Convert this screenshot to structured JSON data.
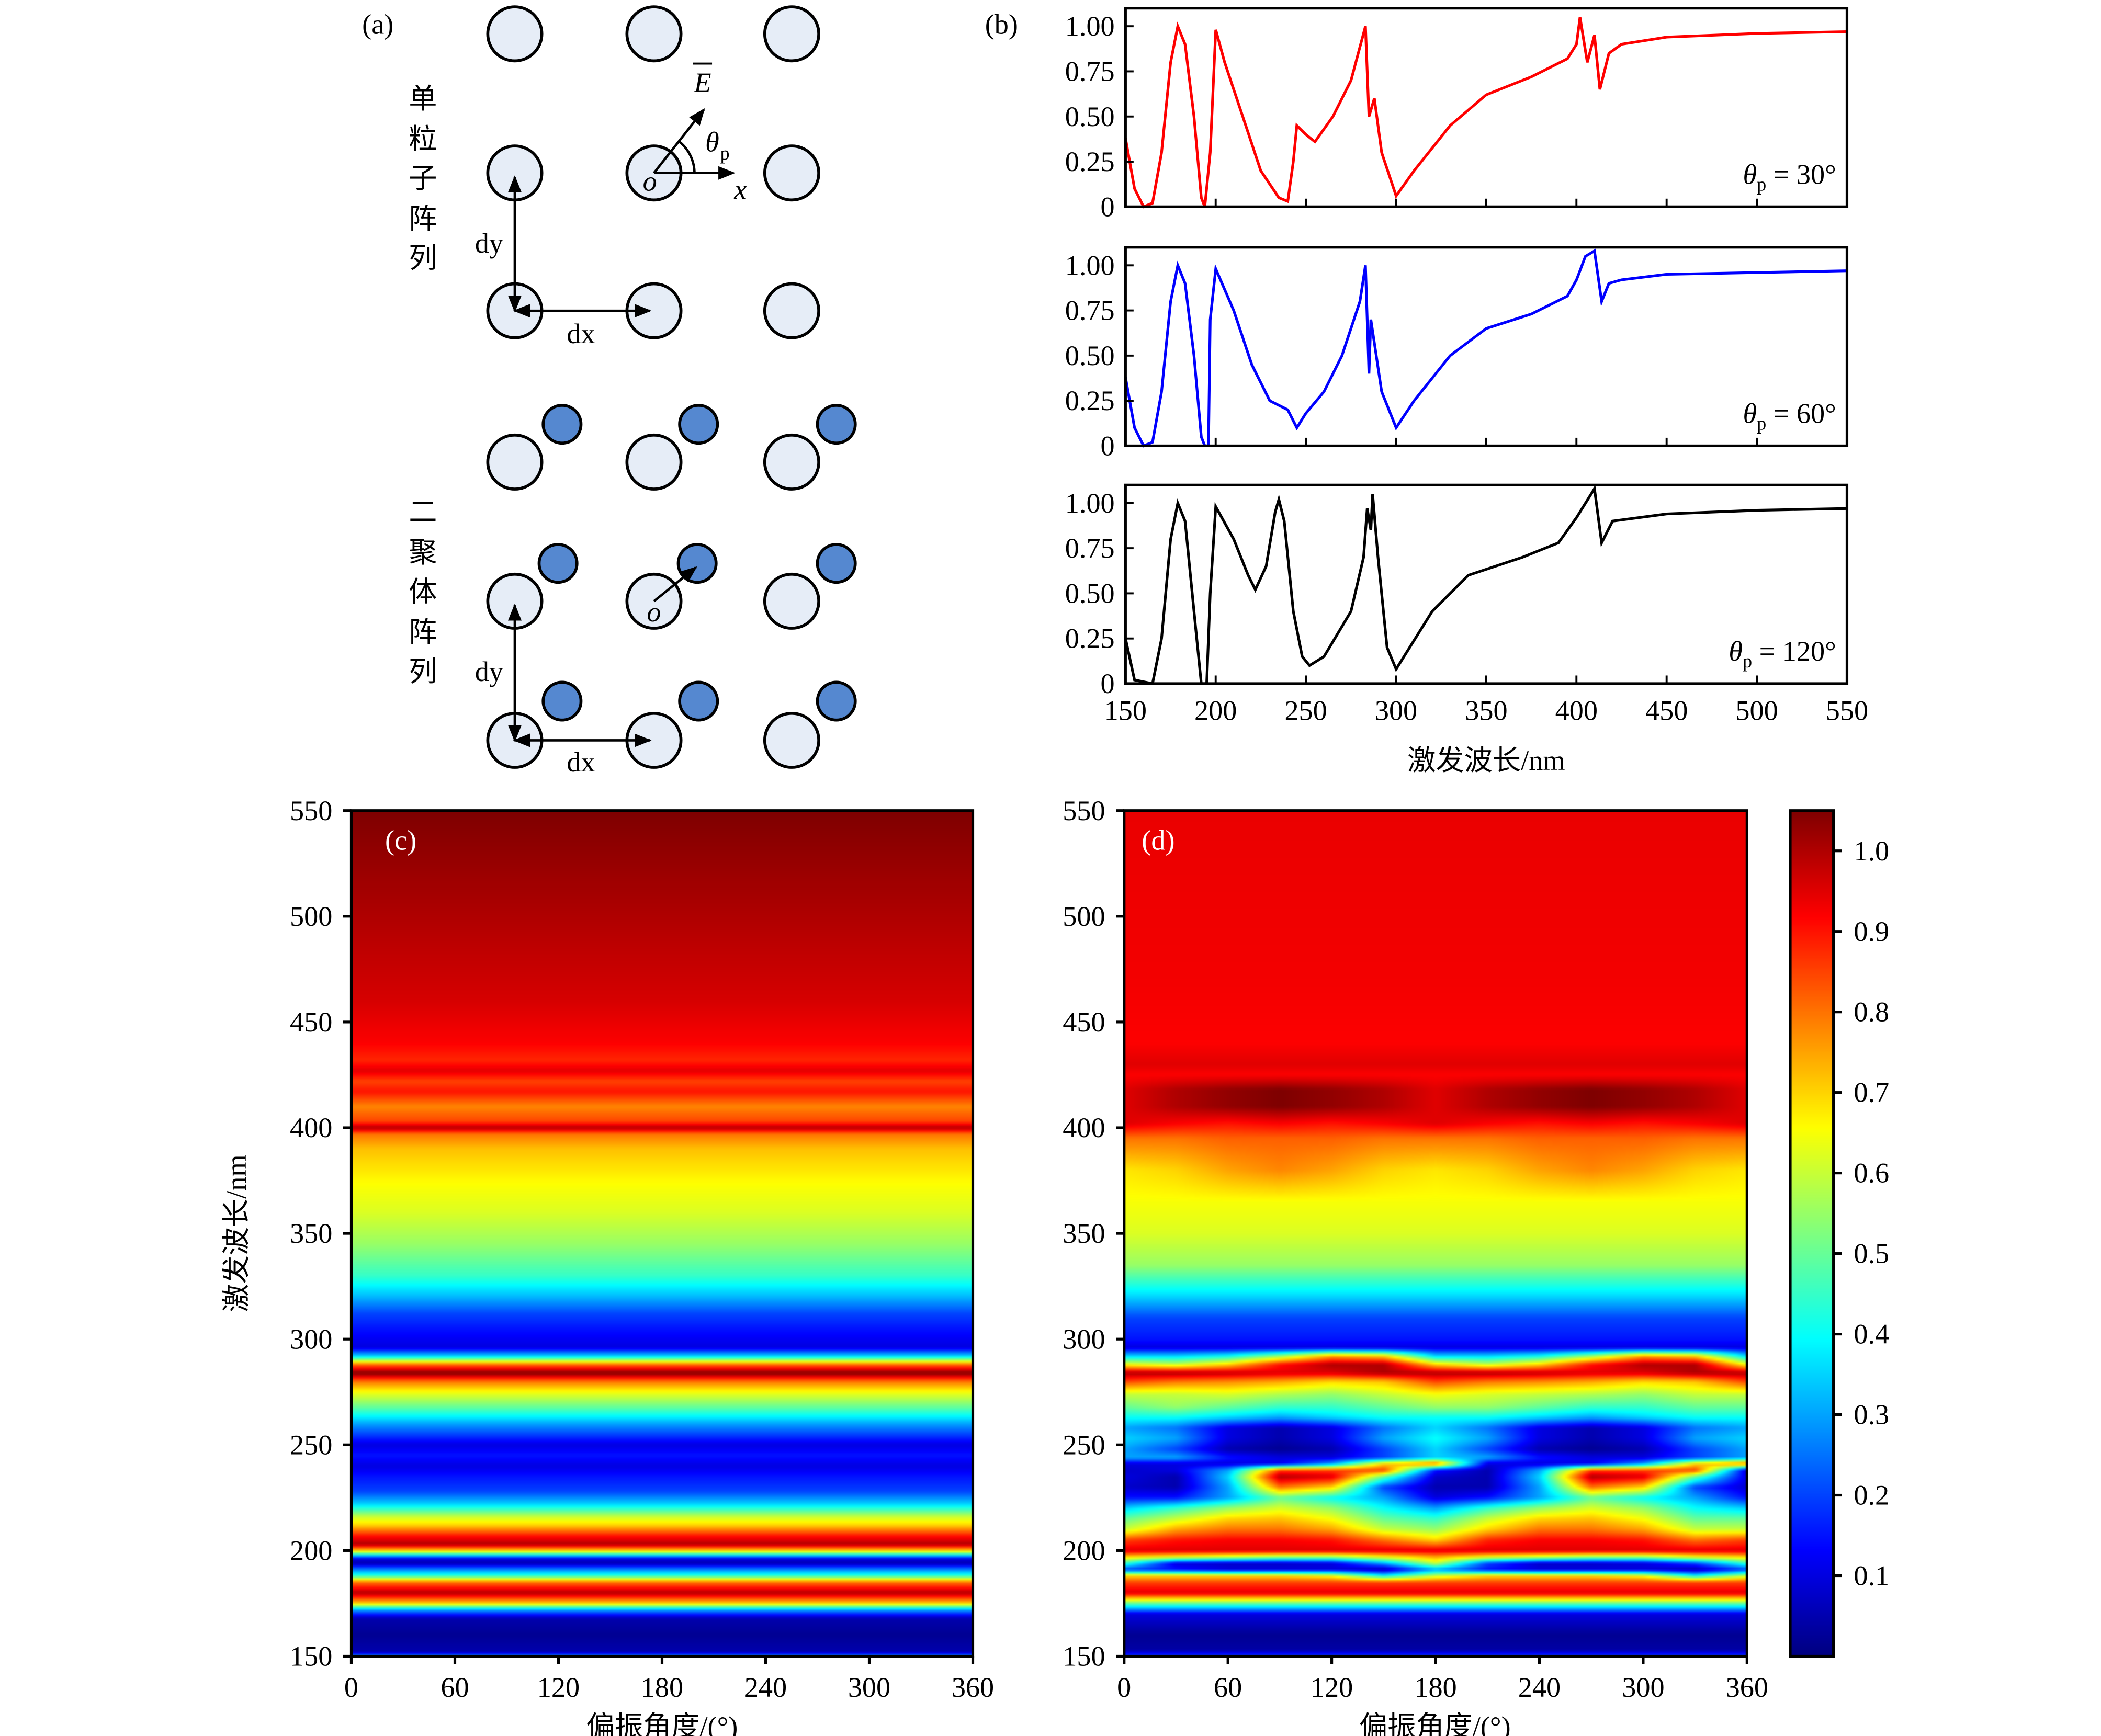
{
  "panel_a": {
    "label": "(a)",
    "group1_title": [
      "单",
      "粒",
      "子",
      "阵",
      "列"
    ],
    "group2_title": [
      "二",
      "聚",
      "体",
      "阵",
      "列"
    ],
    "dy_label": "dy",
    "dx_label": "dx",
    "e_label": "E",
    "theta_label": "θ",
    "theta_sub": "p",
    "x_axis_label": "x",
    "origin_label": "o",
    "colors": {
      "particle": "#e6edf7",
      "dimer_particle": "#5588d0"
    }
  },
  "chart_data": [
    {
      "id": "b",
      "type": "line",
      "panel_label": "(b)",
      "xlabel": "激发波长/nm",
      "xlim": [
        150,
        550
      ],
      "xticks": [
        150,
        200,
        250,
        300,
        350,
        400,
        450,
        500,
        550
      ],
      "ylim": [
        0,
        1.1
      ],
      "yticks": [
        0,
        0.25,
        0.5,
        0.75,
        1.0
      ],
      "ytick_labels": [
        "0",
        "0.25",
        "0.50",
        "0.75",
        "1.00"
      ],
      "grid": false,
      "subplots": [
        {
          "legend_symbol": "θ",
          "legend_sub": "p",
          "legend_text": "= 30°",
          "color": "#ff0000",
          "x": [
            150,
            155,
            160,
            165,
            170,
            175,
            179,
            183,
            188,
            192,
            194,
            197,
            200,
            205,
            215,
            225,
            235,
            240,
            243,
            245,
            250,
            255,
            265,
            275,
            283,
            285,
            288,
            292,
            300,
            310,
            330,
            350,
            375,
            395,
            400,
            402,
            406,
            410,
            413,
            418,
            425,
            450,
            500,
            550
          ],
          "y": [
            0.38,
            0.1,
            0.0,
            0.02,
            0.3,
            0.8,
            1.0,
            0.9,
            0.5,
            0.05,
            0.0,
            0.3,
            0.98,
            0.8,
            0.5,
            0.2,
            0.05,
            0.03,
            0.25,
            0.45,
            0.4,
            0.36,
            0.5,
            0.7,
            1.0,
            0.5,
            0.6,
            0.3,
            0.06,
            0.2,
            0.45,
            0.62,
            0.72,
            0.82,
            0.9,
            1.05,
            0.8,
            0.95,
            0.65,
            0.85,
            0.9,
            0.94,
            0.96,
            0.97
          ]
        },
        {
          "legend_symbol": "θ",
          "legend_sub": "p",
          "legend_text": "= 60°",
          "color": "#0000ff",
          "x": [
            150,
            155,
            160,
            165,
            170,
            175,
            179,
            183,
            188,
            192,
            194,
            196,
            197,
            200,
            210,
            220,
            230,
            240,
            245,
            250,
            260,
            270,
            280,
            283,
            285,
            286,
            292,
            300,
            310,
            330,
            350,
            375,
            395,
            400,
            405,
            410,
            414,
            418,
            425,
            450,
            500,
            550
          ],
          "y": [
            0.38,
            0.1,
            0.0,
            0.02,
            0.3,
            0.8,
            1.0,
            0.9,
            0.5,
            0.05,
            0.0,
            0.0,
            0.7,
            0.98,
            0.75,
            0.45,
            0.25,
            0.2,
            0.1,
            0.18,
            0.3,
            0.5,
            0.8,
            1.0,
            0.4,
            0.7,
            0.3,
            0.1,
            0.25,
            0.5,
            0.65,
            0.73,
            0.83,
            0.92,
            1.05,
            1.08,
            0.8,
            0.9,
            0.92,
            0.95,
            0.96,
            0.97
          ]
        },
        {
          "legend_symbol": "θ",
          "legend_sub": "p",
          "legend_text": "= 120°",
          "color": "#000000",
          "x": [
            150,
            155,
            165,
            170,
            175,
            179,
            183,
            188,
            192,
            195,
            197,
            200,
            210,
            218,
            222,
            228,
            233,
            235,
            238,
            243,
            248,
            252,
            260,
            275,
            282,
            284,
            286,
            287,
            290,
            295,
            300,
            320,
            340,
            370,
            390,
            400,
            410,
            414,
            420,
            450,
            500,
            550
          ],
          "y": [
            0.25,
            0.02,
            0.0,
            0.25,
            0.8,
            1.0,
            0.9,
            0.4,
            0.0,
            0.0,
            0.5,
            0.98,
            0.8,
            0.6,
            0.52,
            0.65,
            0.95,
            1.02,
            0.9,
            0.4,
            0.15,
            0.1,
            0.15,
            0.4,
            0.7,
            0.97,
            0.85,
            1.05,
            0.7,
            0.2,
            0.08,
            0.4,
            0.6,
            0.7,
            0.78,
            0.92,
            1.08,
            0.78,
            0.9,
            0.94,
            0.96,
            0.97
          ]
        }
      ]
    },
    {
      "id": "c",
      "type": "heatmap",
      "panel_label": "(c)",
      "xlabel": "偏振角度/(°)",
      "ylabel": "激发波长/nm",
      "xlim": [
        0,
        360
      ],
      "ylim": [
        150,
        550
      ],
      "xticks": [
        0,
        60,
        120,
        180,
        240,
        300,
        360
      ],
      "yticks": [
        150,
        200,
        250,
        300,
        350,
        400,
        450,
        500,
        550
      ],
      "colormap": "jet",
      "clim": [
        0,
        1.05
      ],
      "angle_independent": true,
      "wavelengths": [
        150,
        152,
        160,
        168,
        172,
        175,
        180,
        185,
        188,
        192,
        194,
        196,
        198,
        200,
        203,
        207,
        212,
        216,
        222,
        228,
        235,
        240,
        245,
        250,
        255,
        260,
        268,
        275,
        280,
        284,
        288,
        292,
        296,
        300,
        305,
        312,
        320,
        330,
        345,
        360,
        375,
        390,
        397,
        400,
        403,
        410,
        417,
        422,
        427,
        432,
        440,
        460,
        500,
        550
      ],
      "values": [
        0.3,
        0.05,
        0.02,
        0.05,
        0.3,
        0.7,
        1.0,
        0.8,
        0.45,
        0.2,
        0.05,
        0.1,
        0.4,
        0.7,
        1.0,
        0.9,
        0.7,
        0.6,
        0.35,
        0.2,
        0.15,
        0.1,
        0.15,
        0.1,
        0.2,
        0.3,
        0.5,
        0.65,
        0.8,
        1.05,
        0.8,
        0.35,
        0.1,
        0.12,
        0.15,
        0.2,
        0.32,
        0.45,
        0.55,
        0.62,
        0.66,
        0.72,
        0.8,
        1.0,
        0.85,
        0.78,
        0.9,
        0.85,
        0.95,
        0.88,
        0.92,
        0.96,
        1.0,
        1.05
      ]
    },
    {
      "id": "d",
      "type": "heatmap",
      "panel_label": "(d)",
      "xlabel": "偏振角度/(°)",
      "xlim": [
        0,
        360
      ],
      "ylim": [
        150,
        550
      ],
      "xticks": [
        0,
        60,
        120,
        180,
        240,
        300,
        360
      ],
      "yticks": [
        150,
        200,
        250,
        300,
        350,
        400,
        450,
        500,
        550
      ],
      "colormap": "jet",
      "clim": [
        0,
        1.05
      ],
      "angles": [
        0,
        30,
        60,
        90,
        120,
        150,
        180,
        210,
        240,
        270,
        300,
        330,
        360
      ],
      "wavelengths": [
        150,
        153,
        160,
        170,
        175,
        180,
        185,
        188,
        191,
        194,
        197,
        200,
        205,
        210,
        215,
        220,
        225,
        230,
        235,
        238,
        241,
        244,
        248,
        253,
        258,
        263,
        268,
        274,
        280,
        284,
        288,
        292,
        296,
        300,
        310,
        320,
        335,
        350,
        365,
        380,
        395,
        402,
        410,
        418,
        425,
        430,
        440,
        470,
        550
      ],
      "values": [
        0.2,
        0.04,
        0.02,
        0.1,
        0.5,
        0.95,
        0.85,
        [
          0.7,
          0.7,
          0.7,
          0.7,
          0.65,
          0.4,
          0.6,
          0.7,
          0.7,
          0.7,
          0.65,
          0.4,
          0.6
        ],
        [
          0.2,
          0.15,
          0.1,
          0.1,
          0.1,
          0.05,
          0.3,
          0.15,
          0.1,
          0.1,
          0.1,
          0.05,
          0.2
        ],
        [
          0.45,
          0.1,
          0.08,
          0.08,
          0.1,
          0.3,
          0.6,
          0.2,
          0.08,
          0.08,
          0.1,
          0.2,
          0.45
        ],
        [
          0.7,
          0.65,
          0.6,
          0.55,
          0.55,
          0.65,
          0.75,
          0.65,
          0.6,
          0.55,
          0.55,
          0.65,
          0.7
        ],
        0.95,
        [
          0.85,
          0.9,
          0.92,
          0.92,
          0.9,
          0.8,
          0.7,
          0.88,
          0.92,
          0.92,
          0.9,
          0.8,
          0.85
        ],
        [
          0.6,
          0.75,
          0.8,
          0.8,
          0.75,
          0.6,
          0.55,
          0.7,
          0.8,
          0.8,
          0.75,
          0.6,
          0.6
        ],
        [
          0.5,
          0.6,
          0.7,
          0.72,
          0.65,
          0.5,
          0.45,
          0.6,
          0.7,
          0.72,
          0.65,
          0.5,
          0.5
        ],
        [
          0.35,
          0.45,
          0.55,
          0.62,
          0.55,
          0.4,
          0.3,
          0.45,
          0.55,
          0.62,
          0.55,
          0.4,
          0.35
        ],
        [
          0.15,
          0.15,
          0.3,
          0.5,
          0.4,
          0.3,
          0.1,
          0.15,
          0.3,
          0.5,
          0.4,
          0.3,
          0.15
        ],
        [
          0.08,
          0.05,
          0.3,
          0.8,
          0.7,
          0.2,
          0.05,
          0.05,
          0.3,
          0.8,
          0.7,
          0.2,
          0.08
        ],
        [
          0.1,
          0.05,
          0.35,
          1.0,
          0.95,
          0.5,
          0.08,
          0.05,
          0.35,
          1.0,
          0.95,
          0.5,
          0.1
        ],
        [
          0.08,
          0.1,
          0.3,
          0.85,
          0.85,
          0.85,
          0.15,
          0.05,
          0.3,
          0.85,
          0.85,
          0.85,
          0.08
        ],
        [
          0.1,
          0.1,
          0.1,
          0.12,
          0.3,
          0.7,
          0.8,
          0.1,
          0.1,
          0.12,
          0.3,
          0.7,
          0.8
        ],
        [
          0.3,
          0.3,
          0.15,
          0.1,
          0.1,
          0.2,
          0.35,
          0.3,
          0.15,
          0.1,
          0.1,
          0.2,
          0.3
        ],
        [
          0.3,
          0.2,
          0.05,
          0.02,
          0.05,
          0.2,
          0.35,
          0.2,
          0.05,
          0.02,
          0.05,
          0.2,
          0.3
        ],
        [
          0.35,
          0.3,
          0.1,
          0.05,
          0.1,
          0.3,
          0.4,
          0.3,
          0.1,
          0.05,
          0.1,
          0.3,
          0.35
        ],
        [
          0.3,
          0.25,
          0.1,
          0.05,
          0.1,
          0.25,
          0.35,
          0.25,
          0.1,
          0.05,
          0.1,
          0.25,
          0.3
        ],
        [
          0.4,
          0.4,
          0.35,
          0.3,
          0.35,
          0.4,
          0.4,
          0.4,
          0.35,
          0.3,
          0.35,
          0.4,
          0.4
        ],
        [
          0.5,
          0.55,
          0.5,
          0.45,
          0.45,
          0.5,
          0.55,
          0.55,
          0.5,
          0.45,
          0.45,
          0.5,
          0.5
        ],
        [
          0.6,
          0.6,
          0.62,
          0.58,
          0.55,
          0.6,
          0.65,
          0.62,
          0.6,
          0.58,
          0.55,
          0.6,
          0.6
        ],
        [
          0.85,
          0.8,
          0.78,
          0.75,
          0.7,
          0.72,
          0.85,
          0.8,
          0.78,
          0.75,
          0.7,
          0.72,
          0.85
        ],
        [
          1.0,
          1.0,
          0.98,
          0.95,
          0.95,
          1.0,
          1.0,
          1.0,
          0.98,
          0.95,
          0.95,
          1.0,
          1.0
        ],
        [
          0.65,
          0.6,
          0.7,
          0.9,
          1.0,
          1.0,
          0.7,
          0.6,
          0.7,
          0.9,
          1.0,
          1.0,
          0.65
        ],
        [
          0.35,
          0.35,
          0.4,
          0.55,
          0.75,
          0.7,
          0.35,
          0.35,
          0.4,
          0.55,
          0.75,
          0.7,
          0.35
        ],
        0.1,
        0.15,
        0.2,
        0.35,
        0.55,
        0.62,
        0.65,
        [
          0.68,
          0.7,
          0.75,
          0.78,
          0.75,
          0.7,
          0.68,
          0.7,
          0.75,
          0.78,
          0.75,
          0.7,
          0.68
        ],
        [
          0.8,
          0.8,
          0.82,
          0.82,
          0.82,
          0.8,
          0.8,
          0.8,
          0.82,
          0.82,
          0.82,
          0.8,
          0.8
        ],
        [
          0.95,
          0.92,
          0.9,
          0.92,
          0.9,
          0.92,
          0.95,
          0.92,
          0.9,
          0.92,
          0.9,
          0.92,
          0.95
        ],
        [
          0.95,
          1.0,
          1.03,
          1.05,
          1.03,
          1.0,
          0.95,
          1.0,
          1.03,
          1.05,
          1.03,
          1.0,
          0.95
        ],
        [
          0.95,
          1.0,
          1.03,
          1.05,
          1.03,
          1.0,
          0.95,
          1.0,
          1.03,
          1.05,
          1.03,
          1.0,
          0.95
        ],
        0.92,
        0.95,
        0.92,
        0.93,
        0.94
      ],
      "colorbar": {
        "ticks": [
          0.1,
          0.2,
          0.3,
          0.4,
          0.5,
          0.6,
          0.7,
          0.8,
          0.9,
          1.0
        ],
        "tick_labels": [
          "0.1",
          "0.2",
          "0.3",
          "0.4",
          "0.5",
          "0.6",
          "0.7",
          "0.8",
          "0.9",
          "1.0"
        ]
      }
    }
  ]
}
